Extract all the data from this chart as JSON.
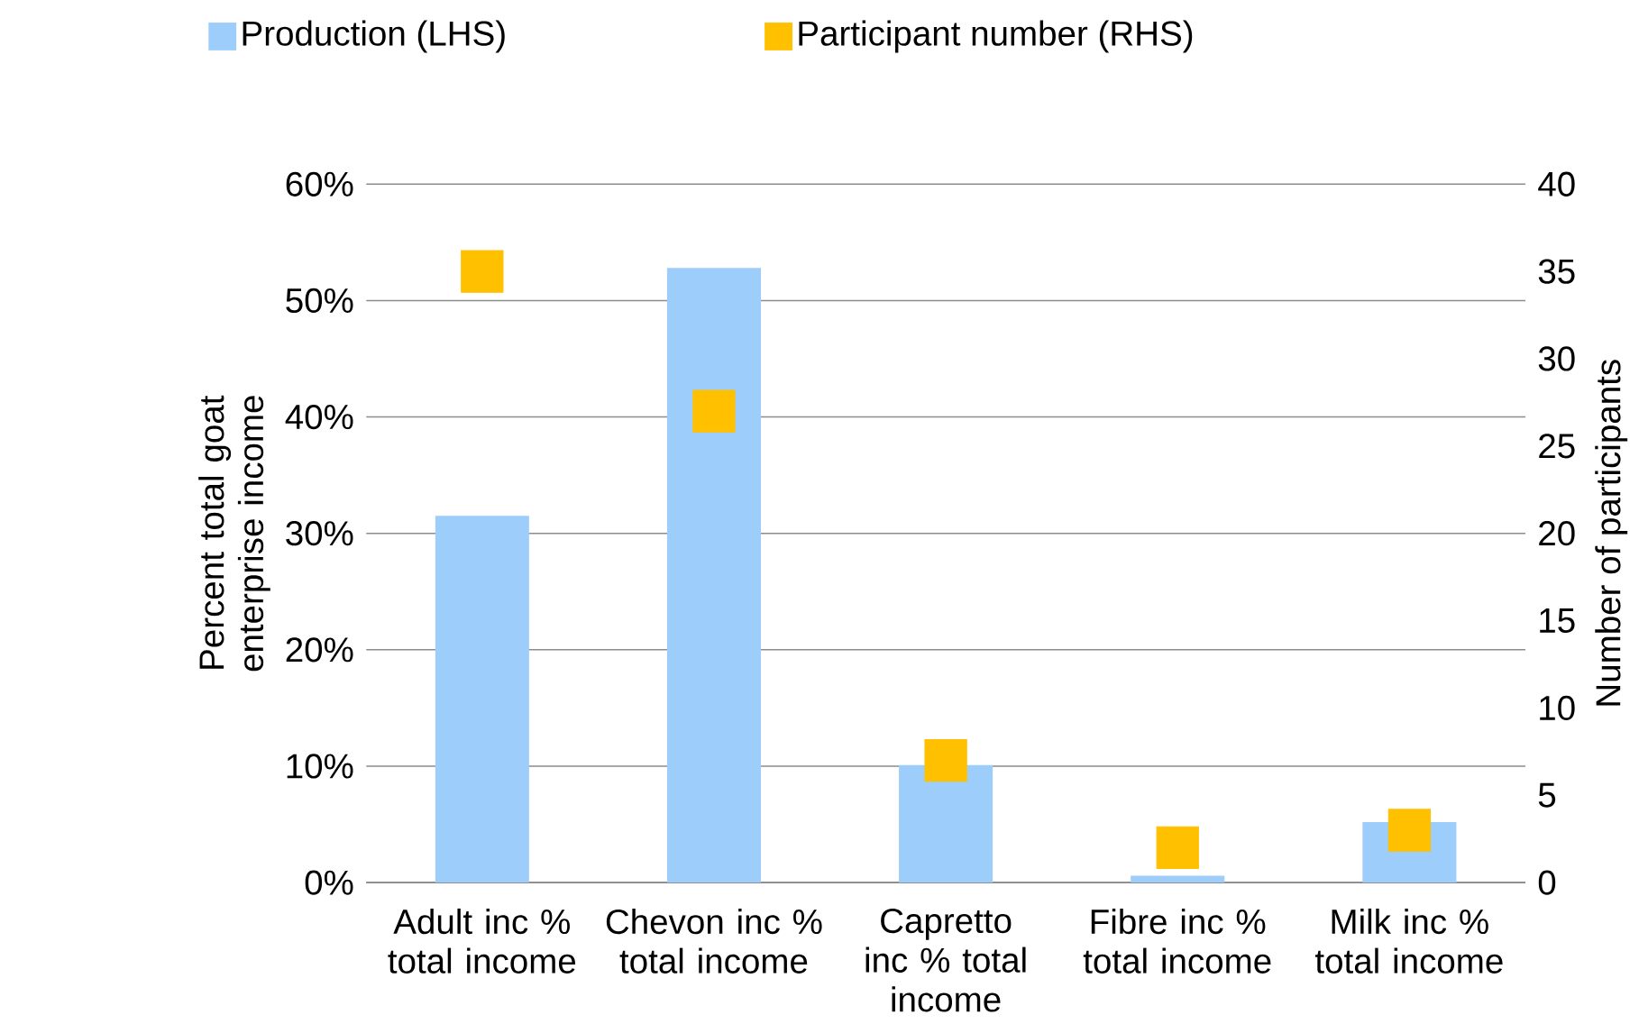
{
  "chart_data": {
    "type": "bar",
    "ylabel": "Percent total goat enterprise income",
    "y2label": "Number of participants",
    "categories": [
      "Adult inc % total income",
      "Chevon inc % total income",
      "Capretto inc % total income",
      "Fibre inc % total income",
      "Milk inc % total income"
    ],
    "series": [
      {
        "name": "Production (LHS)",
        "color": "#9dcdfb",
        "values": [
          31.5,
          52.8,
          10.1,
          0.6,
          5.2
        ]
      },
      {
        "name": "Participant number (RHS)",
        "type": "scatter",
        "axis": "y2",
        "color": "#ffc000",
        "values": [
          35,
          27,
          7,
          2,
          3
        ]
      }
    ],
    "ylim": [
      0,
      60
    ],
    "yticks": [
      {
        "value": 0,
        "label": "0%"
      },
      {
        "value": 10,
        "label": "10%"
      },
      {
        "value": 20,
        "label": "20%"
      },
      {
        "value": 30,
        "label": "30%"
      },
      {
        "value": 40,
        "label": "40%"
      },
      {
        "value": 50,
        "label": "50%"
      },
      {
        "value": 60,
        "label": "60%"
      }
    ],
    "y2lim": [
      0,
      40
    ],
    "y2ticks": [
      0,
      5,
      10,
      15,
      20,
      25,
      30,
      35,
      40
    ],
    "grid": "y",
    "legend": "top",
    "marker": "square"
  }
}
